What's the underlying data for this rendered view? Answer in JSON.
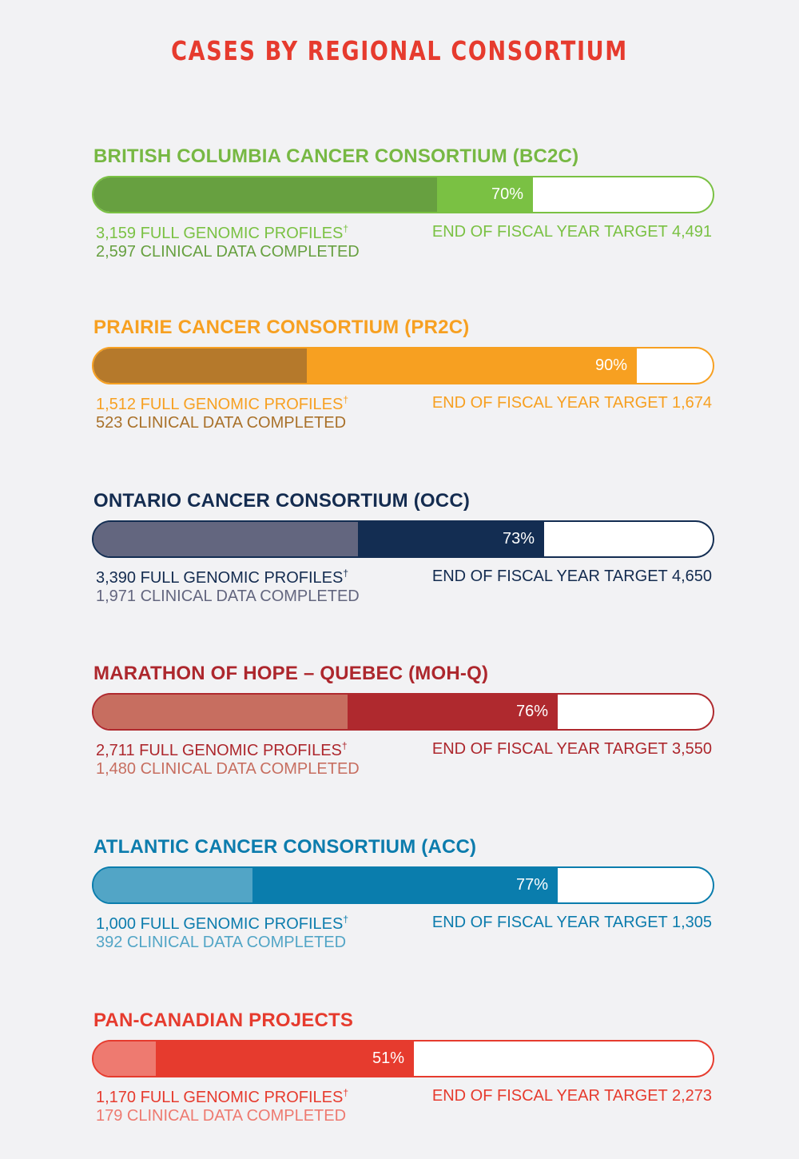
{
  "title": "CASES BY REGIONAL CONSORTIUM",
  "dagger": "†",
  "sections": [
    {
      "name": "BRITISH COLUMBIA CANCER CONSORTIUM (BC2C)",
      "full_profiles": 3159,
      "full_text": "3,159 FULL GENOMIC PROFILES",
      "clinical": 2597,
      "clinical_text": "2,597 CLINICAL DATA COMPLETED",
      "target": 4491,
      "target_text": "END OF FISCAL YEAR TARGET 4,491",
      "percent_label": "70%",
      "colors": {
        "title": "#77b843",
        "full": "#7ac143",
        "clinical": "#67a040",
        "border": "#7ac143",
        "full_text": "#7ac143",
        "clinical_text": "#67a040",
        "target_text": "#7ac143"
      }
    },
    {
      "name": "PRAIRIE CANCER CONSORTIUM (PR2C)",
      "full_profiles": 1512,
      "full_text": "1,512 FULL GENOMIC PROFILES",
      "clinical": 523,
      "clinical_text": "523 CLINICAL DATA COMPLETED",
      "target": 1674,
      "target_text": "END OF FISCAL YEAR TARGET 1,674",
      "percent_label": "90%",
      "colors": {
        "title": "#f7a021",
        "full": "#f7a021",
        "clinical": "#b5792b",
        "border": "#f7a021",
        "full_text": "#f7a021",
        "clinical_text": "#a9712a",
        "target_text": "#f7a021"
      }
    },
    {
      "name": "ONTARIO CANCER CONSORTIUM (OCC)",
      "full_profiles": 3390,
      "full_text": "3,390 FULL GENOMIC PROFILES",
      "clinical": 1971,
      "clinical_text": "1,971 CLINICAL DATA COMPLETED",
      "target": 4650,
      "target_text": "END OF FISCAL YEAR TARGET 4,650",
      "percent_label": "73%",
      "colors": {
        "title": "#142c50",
        "full": "#132d52",
        "clinical": "#63667f",
        "border": "#132d52",
        "full_text": "#142c50",
        "clinical_text": "#63667f",
        "target_text": "#142c50"
      }
    },
    {
      "name": "MARATHON OF HOPE – QUEBEC (MOH-Q)",
      "full_profiles": 2711,
      "full_text": "2,711 FULL GENOMIC PROFILES",
      "clinical": 1480,
      "clinical_text": "1,480 CLINICAL DATA COMPLETED",
      "target": 3550,
      "target_text": "END OF FISCAL YEAR TARGET 3,550",
      "percent_label": "76%",
      "colors": {
        "title": "#ad272d",
        "full": "#af292e",
        "clinical": "#c76e60",
        "border": "#af292e",
        "full_text": "#ad272d",
        "clinical_text": "#c76e60",
        "target_text": "#ad272d"
      }
    },
    {
      "name": "ATLANTIC CANCER CONSORTIUM (ACC)",
      "full_profiles": 1000,
      "full_text": "1,000 FULL GENOMIC PROFILES",
      "clinical": 392,
      "clinical_text": "392 CLINICAL DATA COMPLETED",
      "target": 1305,
      "target_text": "END OF FISCAL YEAR TARGET 1,305",
      "percent_label": "77%",
      "colors": {
        "title": "#0c7cad",
        "full": "#0a7dad",
        "clinical": "#52a5c6",
        "border": "#0a7dad",
        "full_text": "#0c7cad",
        "clinical_text": "#52a5c6",
        "target_text": "#0c7cad"
      }
    },
    {
      "name": "PAN-CANADIAN PROJECTS",
      "full_profiles": 1170,
      "full_text": "1,170 FULL GENOMIC PROFILES",
      "clinical": 179,
      "clinical_text": "179 CLINICAL DATA COMPLETED",
      "target": 2273,
      "target_text": "END OF FISCAL YEAR TARGET 2,273",
      "percent_label": "51%",
      "colors": {
        "title": "#e63b2e",
        "full": "#e63b2e",
        "clinical": "#ee7a70",
        "border": "#e63b2e",
        "full_text": "#e63b2e",
        "clinical_text": "#ee7a70",
        "target_text": "#e63b2e"
      }
    }
  ],
  "chart_data": {
    "type": "bar",
    "title": "CASES BY REGIONAL CONSORTIUM",
    "orientation": "horizontal-progress",
    "categories": [
      "BRITISH COLUMBIA CANCER CONSORTIUM (BC2C)",
      "PRAIRIE CANCER CONSORTIUM (PR2C)",
      "ONTARIO CANCER CONSORTIUM (OCC)",
      "MARATHON OF HOPE – QUEBEC (MOH-Q)",
      "ATLANTIC CANCER CONSORTIUM (ACC)",
      "PAN-CANADIAN PROJECTS"
    ],
    "series": [
      {
        "name": "Full Genomic Profiles",
        "values": [
          3159,
          1512,
          3390,
          2711,
          1000,
          1170
        ]
      },
      {
        "name": "Clinical Data Completed",
        "values": [
          2597,
          523,
          1971,
          1480,
          392,
          179
        ]
      },
      {
        "name": "End of Fiscal Year Target",
        "values": [
          4491,
          1674,
          4650,
          3550,
          1305,
          2273
        ]
      }
    ],
    "percent_labels": [
      "70%",
      "90%",
      "73%",
      "76%",
      "77%",
      "51%"
    ],
    "bar_fill_fraction_full": [
      0.71,
      0.877,
      0.728,
      0.75,
      0.75,
      0.517
    ],
    "bar_fill_fraction_clinical": [
      0.555,
      0.344,
      0.427,
      0.41,
      0.257,
      0.101
    ],
    "xlabel": "",
    "ylabel": "",
    "grid": false,
    "legend": "none"
  }
}
